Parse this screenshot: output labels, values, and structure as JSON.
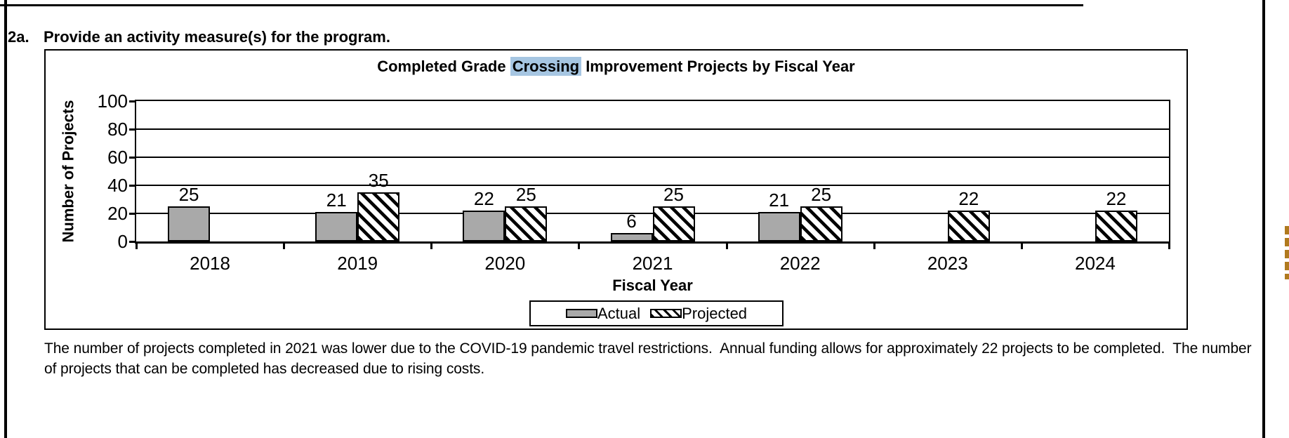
{
  "header": {
    "number": "2a.",
    "question": "Provide an activity measure(s) for the program."
  },
  "chart_data": {
    "type": "bar",
    "title_prefix": "Completed Grade ",
    "title_highlight": "Crossing",
    "title_suffix": " Improvement Projects by Fiscal Year",
    "title_full": "Completed Grade Crossing Improvement Projects by Fiscal Year",
    "xlabel": "Fiscal Year",
    "ylabel": "Number of Projects",
    "ylim": [
      0,
      100
    ],
    "yticks": [
      0,
      20,
      40,
      60,
      80,
      100
    ],
    "grid": true,
    "legend_position": "bottom",
    "categories": [
      "2018",
      "2019",
      "2020",
      "2021",
      "2022",
      "2023",
      "2024"
    ],
    "series": [
      {
        "name": "Actual",
        "style": "solid-gray",
        "values": [
          25,
          21,
          22,
          6,
          21,
          null,
          null
        ]
      },
      {
        "name": "Projected",
        "style": "hatched",
        "values": [
          null,
          35,
          25,
          25,
          25,
          22,
          22
        ]
      }
    ]
  },
  "colors": {
    "actual_fill": "#a9a9a9",
    "title_highlight_bg": "#a6c6e2",
    "annotation_mark": "#b07a1e"
  },
  "note": "The number of projects completed in 2021 was lower due to the COVID-19 pandemic travel restrictions.  Annual funding allows for approximately 22 projects to be completed.  The number of projects that can be completed has decreased due to rising costs."
}
